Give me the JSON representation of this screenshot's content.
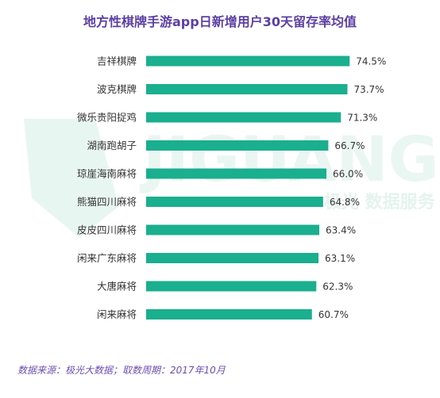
{
  "chart_data": {
    "type": "bar",
    "orientation": "horizontal",
    "title": "地方性棋牌手游app日新增用户30天留存率均值",
    "categories": [
      "吉祥棋牌",
      "波克棋牌",
      "微乐贵阳捉鸡",
      "湖南跑胡子",
      "琼崖海南麻将",
      "熊猫四川麻将",
      "皮皮四川麻将",
      "闲来广东麻将",
      "大唐麻将",
      "闲来麻将"
    ],
    "values": [
      74.5,
      73.7,
      71.3,
      66.7,
      66.0,
      64.8,
      63.4,
      63.1,
      62.3,
      60.7
    ],
    "value_labels": [
      "74.5%",
      "73.7%",
      "71.3%",
      "66.7%",
      "66.0%",
      "64.8%",
      "63.4%",
      "63.1%",
      "62.3%",
      "60.7%"
    ],
    "xlim": [
      0,
      82
    ],
    "grid": false,
    "legend": "none",
    "bar_color": "#1aaf8e"
  },
  "watermark": {
    "logo_text": "JIGUANG",
    "sub_text": "极光 数据服务"
  },
  "source": "数据来源：极光大数据；取数周期：2017年10月"
}
